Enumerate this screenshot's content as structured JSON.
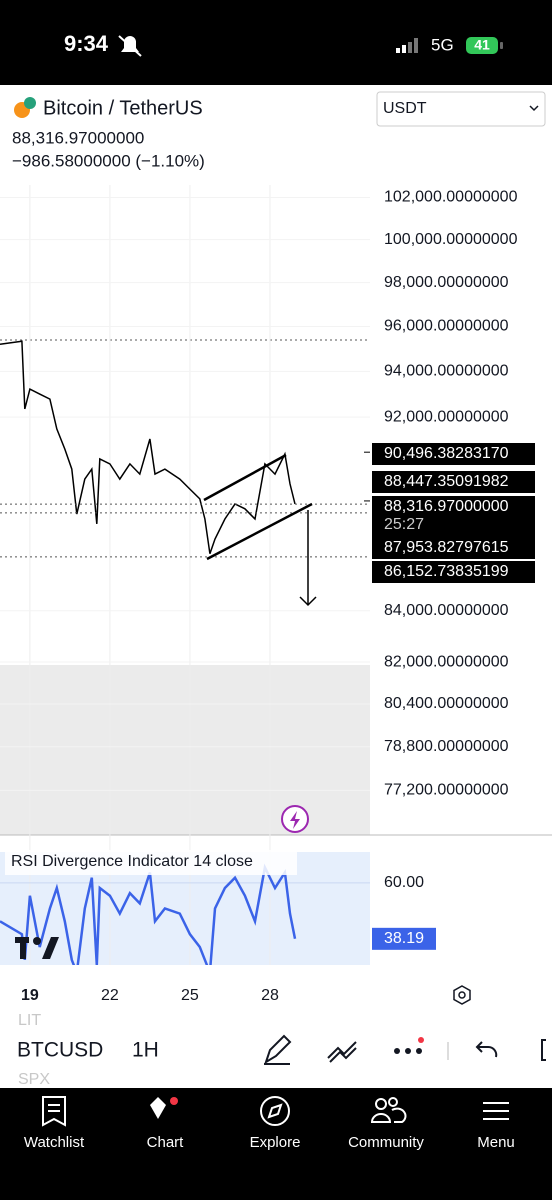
{
  "status_bar": {
    "time": "9:34",
    "network": "5G",
    "battery": "41"
  },
  "header": {
    "symbol": "Bitcoin / TetherUS",
    "price": "88,316.97000000",
    "change": "−986.58000000 (−1.10%)",
    "currency": "USDT"
  },
  "chart_data": [
    {
      "type": "line",
      "log_scale": true,
      "series": [
        {
          "name": "BTCUSDT",
          "color": "#000000",
          "x": [
            17.88,
            18.7,
            18.81,
            19.0,
            19.37,
            19.75,
            20.01,
            20.31,
            20.57,
            20.76,
            21.06,
            21.32,
            21.51,
            21.62,
            22.0,
            22.37,
            22.75,
            23.12,
            23.5,
            23.69,
            24.06,
            24.62,
            25.0,
            25.37,
            25.56,
            25.75,
            25.94,
            26.31,
            26.69,
            27.06,
            27.44,
            27.81,
            28.19,
            28.56,
            28.75,
            28.94
          ],
          "values": [
            95200,
            95340,
            92350,
            93220,
            93000,
            92780,
            91490,
            90630,
            89780,
            87900,
            89360,
            89780,
            87500,
            90210,
            90000,
            89360,
            90000,
            89570,
            91060,
            89570,
            89780,
            89360,
            88940,
            88530,
            87700,
            86280,
            86880,
            87700,
            88320,
            88120,
            87700,
            90000,
            89570,
            90420,
            89160,
            88320
          ]
        }
      ],
      "xlim": [
        17.88,
        31.75
      ],
      "xticks": [
        19,
        22,
        25,
        28
      ],
      "ylim": [
        75600,
        102600
      ],
      "yticks": [
        {
          "value": 102000,
          "label": "102,000.00000000"
        },
        {
          "value": 100000,
          "label": "100,000.00000000"
        },
        {
          "value": 98000,
          "label": "98,000.00000000"
        },
        {
          "value": 96000,
          "label": "96,000.00000000"
        },
        {
          "value": 94000,
          "label": "94,000.00000000"
        },
        {
          "value": 92000,
          "label": "92,000.00000000"
        },
        {
          "value": 84000,
          "label": "84,000.00000000"
        },
        {
          "value": 82000,
          "label": "82,000.00000000"
        },
        {
          "value": 80400,
          "label": "80,400.00000000"
        },
        {
          "value": 78800,
          "label": "78,800.00000000"
        },
        {
          "value": 77200,
          "label": "77,200.00000000"
        }
      ],
      "price_labels": [
        {
          "value": 90496.3828317,
          "label": "90,496.38283170"
        },
        {
          "value": 88447.35091982,
          "label": "88,447.35091982"
        },
        {
          "value": 88316.97,
          "label": "88,316.97000000"
        },
        {
          "value": 87953.82797615,
          "label": "87,953.82797615"
        },
        {
          "value": 86152.73835199,
          "label": "86,152.73835199"
        }
      ],
      "countdown": "25:27"
    },
    {
      "type": "line",
      "title": "RSI Divergence Indicator 14 close",
      "series": [
        {
          "name": "RSI",
          "color": "#3b63e8",
          "x": [
            17.88,
            18.7,
            18.81,
            19.0,
            19.37,
            19.75,
            20.01,
            20.31,
            20.57,
            20.76,
            21.06,
            21.32,
            21.51,
            21.62,
            22.0,
            22.37,
            22.75,
            23.12,
            23.5,
            23.69,
            24.06,
            24.62,
            25.0,
            25.37,
            25.56,
            25.75,
            25.94,
            26.31,
            26.69,
            27.06,
            27.44,
            27.81,
            28.19,
            28.56,
            28.75,
            28.94
          ],
          "values": [
            45,
            40,
            30,
            55,
            35,
            50,
            58,
            45,
            30,
            25,
            50,
            62,
            28,
            58,
            55,
            48,
            56,
            52,
            64,
            45,
            50,
            48,
            40,
            35,
            30,
            25,
            50,
            58,
            62,
            55,
            45,
            66,
            58,
            64,
            48,
            38.19
          ]
        }
      ],
      "xlim": [
        17.88,
        31.75
      ],
      "ylim": [
        28,
        72
      ],
      "yticks": [
        {
          "value": 60,
          "label": "60.00"
        }
      ]
    }
  ],
  "toolbar": {
    "symbol": "BTCUSD",
    "interval": "1H",
    "hints": [
      "LIT",
      "SPX"
    ]
  },
  "nav": [
    "Watchlist",
    "Chart",
    "Explore",
    "Community",
    "Menu"
  ]
}
